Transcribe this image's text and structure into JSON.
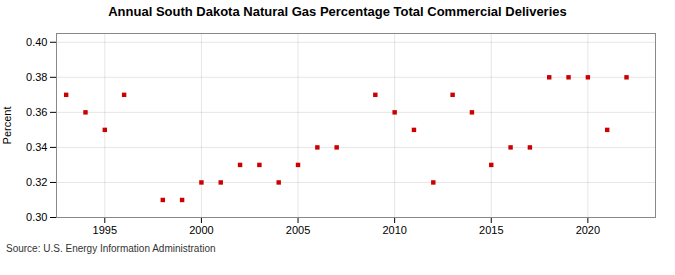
{
  "chart_data": {
    "type": "scatter",
    "title": "Annual South Dakota Natural Gas Percentage Total Commercial Deliveries",
    "ylabel": "Percent",
    "annotation": "Source: U.S. Energy Information Administration",
    "x": [
      1993,
      1994,
      1995,
      1996,
      1998,
      1999,
      2000,
      2001,
      2002,
      2003,
      2004,
      2005,
      2006,
      2007,
      2009,
      2010,
      2011,
      2012,
      2013,
      2014,
      2015,
      2016,
      2017,
      2018,
      2019,
      2020,
      2021,
      2022
    ],
    "values": [
      0.37,
      0.36,
      0.35,
      0.37,
      0.31,
      0.31,
      0.32,
      0.32,
      0.33,
      0.33,
      0.32,
      0.33,
      0.34,
      0.34,
      0.37,
      0.36,
      0.35,
      0.32,
      0.37,
      0.36,
      0.33,
      0.34,
      0.34,
      0.38,
      0.38,
      0.38,
      0.35,
      0.38
    ],
    "color": "#cc0000",
    "marker": "square",
    "xlim": [
      1992.5,
      2023.5
    ],
    "xticks": [
      1995,
      2000,
      2005,
      2010,
      2015,
      2020
    ],
    "ylim": [
      0.3,
      0.405
    ],
    "yticks": [
      {
        "value": 0.3,
        "label": "0.30"
      },
      0.32,
      0.34,
      0.36,
      0.38,
      {
        "value": 0.4,
        "label": "0.40"
      }
    ],
    "grid": true
  }
}
